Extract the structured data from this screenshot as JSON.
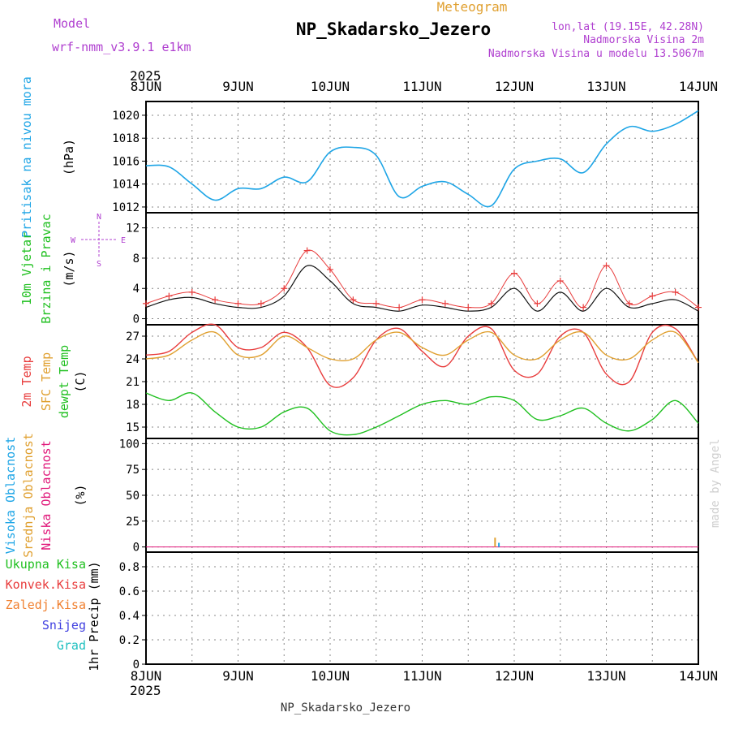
{
  "header": {
    "model_label": "Model",
    "model_name": "wrf-nmm_v3.9.1 e1km",
    "product": "Meteogram",
    "station": "NP_Skadarsko_Jezero",
    "lonlat": "lon,lat (19.15E, 42.28N)",
    "alt": "Nadmorska Visina 2m",
    "alt_model": "Nadmorska Visina u modelu 13.5067m",
    "footer": "NP_Skadarsko_Jezero",
    "credit": "made by Angel"
  },
  "time_axis": {
    "year": "2025",
    "days": [
      "8JUN",
      "9JUN",
      "10JUN",
      "11JUN",
      "12JUN",
      "13JUN",
      "14JUN"
    ]
  },
  "colors": {
    "pressure": "#1ea5e6",
    "t2m": "#e83c3c",
    "tsfc": "#e0a030",
    "dewpt": "#20c020",
    "wind": "#111111",
    "gust": "#e83c3c",
    "high_cloud": "#1ea5e6",
    "mid_cloud": "#e0a030",
    "low_cloud": "#e0187a",
    "total_precip": "#20c020",
    "conv_precip": "#e83c3c",
    "frz_precip": "#f08030",
    "snow": "#4040e0",
    "hail": "#20c0c0",
    "ylabel_pressure": "#1ea5e6",
    "ylabel_wind": "#20c020",
    "compass": "#b040d0",
    "header_purple": "#b040d0",
    "header_gold": "#e0a030"
  },
  "panels": {
    "pressure": {
      "labels": [
        "Pritisak na nivou mora"
      ],
      "unit": "(hPa)",
      "yticks": [
        1012,
        1014,
        1016,
        1018,
        1020
      ],
      "ylim": [
        1011.5,
        1021.2
      ]
    },
    "wind": {
      "labels": [
        "10m Vjetar",
        "Brzina i Pravac"
      ],
      "unit": "(m/s)",
      "yticks": [
        0,
        4,
        8,
        12
      ],
      "ylim": [
        -0.8,
        14
      ],
      "compass": {
        "n": "N",
        "s": "S",
        "e": "E",
        "w": "W"
      }
    },
    "temp": {
      "labels": [
        "2m Temp",
        "SFC Temp",
        "dewpt Temp"
      ],
      "unit": "(C)",
      "yticks": [
        15,
        18,
        21,
        24,
        27
      ],
      "ylim": [
        13.5,
        28.5
      ]
    },
    "cloud": {
      "labels": [
        "Visoka Oblacnost",
        "Srednja Oblacnost",
        "Niska Oblacnost"
      ],
      "unit": "(%)",
      "yticks": [
        0,
        25,
        50,
        75,
        100
      ],
      "ylim": [
        -5,
        105
      ]
    },
    "precip": {
      "labels": [
        "Ukupna Kisa",
        "Konvek.Kisa",
        "Zaledj.Kisa",
        "Snijeg",
        "Grad"
      ],
      "unit": "1hr Precip (mm)",
      "yticks": [
        "0",
        "0.2",
        "0.4",
        "0.6",
        "0.8"
      ],
      "ylim": [
        0,
        0.92
      ]
    }
  },
  "chart_data": [
    {
      "type": "line",
      "panel": "pressure",
      "x_hours": [
        0,
        6,
        12,
        18,
        24,
        30,
        36,
        42,
        48,
        54,
        60,
        66,
        72,
        78,
        84,
        90,
        96,
        102,
        108,
        114,
        120,
        126,
        132,
        138,
        144
      ],
      "series": [
        {
          "name": "Pritisak na nivou mora",
          "values": [
            1015.6,
            1015.5,
            1014.0,
            1012.6,
            1013.6,
            1013.6,
            1014.6,
            1014.2,
            1016.8,
            1017.2,
            1016.5,
            1012.9,
            1013.8,
            1014.2,
            1013.1,
            1012.1,
            1015.3,
            1016.0,
            1016.2,
            1015.0,
            1017.5,
            1019.0,
            1018.6,
            1019.2,
            1020.4
          ]
        }
      ]
    },
    {
      "type": "line",
      "panel": "wind",
      "x_hours": [
        0,
        6,
        12,
        18,
        24,
        30,
        36,
        42,
        48,
        54,
        60,
        66,
        72,
        78,
        84,
        90,
        96,
        102,
        108,
        114,
        120,
        126,
        132,
        138,
        144
      ],
      "series": [
        {
          "name": "10m Vjetar",
          "values": [
            1.5,
            2.5,
            2.8,
            2.0,
            1.5,
            1.5,
            3.0,
            7.0,
            5.0,
            2.0,
            1.5,
            1.0,
            1.8,
            1.5,
            1.0,
            1.5,
            4.0,
            1.0,
            3.5,
            1.0,
            4.0,
            1.5,
            2.0,
            2.5,
            1.0
          ]
        },
        {
          "name": "Brzina i Pravac",
          "values": [
            2.0,
            3.0,
            3.5,
            2.5,
            2.0,
            2.0,
            4.0,
            9.0,
            6.5,
            2.5,
            2.0,
            1.5,
            2.5,
            2.0,
            1.5,
            2.0,
            6.0,
            2.0,
            5.0,
            1.5,
            7.0,
            2.0,
            3.0,
            3.5,
            1.5
          ]
        }
      ]
    },
    {
      "type": "line",
      "panel": "temp",
      "x_hours": [
        0,
        6,
        12,
        18,
        24,
        30,
        36,
        42,
        48,
        54,
        60,
        66,
        72,
        78,
        84,
        90,
        96,
        102,
        108,
        114,
        120,
        126,
        132,
        138,
        144
      ],
      "series": [
        {
          "name": "2m Temp",
          "values": [
            24.5,
            25.0,
            27.5,
            28.5,
            25.5,
            25.5,
            27.5,
            25.5,
            20.5,
            21.5,
            26.5,
            28.0,
            25.0,
            23.0,
            27.0,
            28.0,
            22.5,
            22.0,
            27.0,
            27.5,
            22.0,
            21.0,
            27.5,
            28.0,
            23.5
          ]
        },
        {
          "name": "SFC Temp",
          "values": [
            24.0,
            24.5,
            26.5,
            27.5,
            24.5,
            24.5,
            27.0,
            25.5,
            24.0,
            24.0,
            26.5,
            27.5,
            25.5,
            24.5,
            26.5,
            27.5,
            24.5,
            24.0,
            26.5,
            27.5,
            24.5,
            24.0,
            26.5,
            27.5,
            23.5
          ]
        },
        {
          "name": "dewpt Temp",
          "values": [
            19.5,
            18.5,
            19.5,
            17.0,
            15.0,
            15.0,
            17.0,
            17.5,
            14.5,
            14.0,
            15.0,
            16.5,
            18.0,
            18.5,
            18.0,
            19.0,
            18.5,
            16.0,
            16.5,
            17.5,
            15.5,
            14.5,
            16.0,
            18.5,
            15.5
          ]
        }
      ]
    },
    {
      "type": "bar",
      "panel": "cloud",
      "x_hours": [
        91,
        92
      ],
      "series": [
        {
          "name": "Srednja Oblacnost",
          "values": [
            9,
            0
          ]
        },
        {
          "name": "Visoka Oblacnost",
          "values": [
            0,
            4
          ]
        },
        {
          "name": "Niska Oblacnost",
          "values": [
            0,
            0
          ]
        }
      ]
    },
    {
      "type": "bar",
      "panel": "precip",
      "x_hours": [
        0,
        144
      ],
      "series": [
        {
          "name": "Ukupna Kisa",
          "values": [
            0,
            0
          ]
        }
      ]
    }
  ]
}
